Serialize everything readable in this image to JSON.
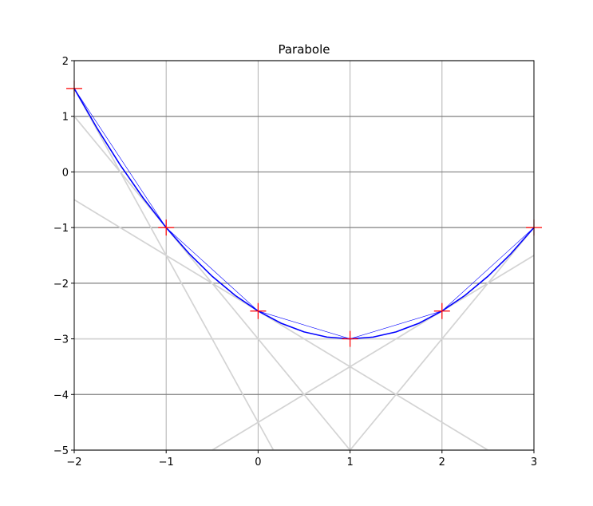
{
  "chart_data": {
    "type": "line",
    "title": "Parabole",
    "xlim": [
      -2,
      3
    ],
    "xticks": [
      {
        "value": -2,
        "label": "−2"
      },
      {
        "value": -1,
        "label": "−1"
      },
      0,
      1,
      2,
      3
    ],
    "ylim": [
      -5,
      2
    ],
    "yticks": [
      {
        "value": -5,
        "label": "−5"
      },
      {
        "value": -4,
        "label": "−4"
      },
      {
        "value": -3,
        "label": "−3"
      },
      {
        "value": -2,
        "label": "−2"
      },
      {
        "value": -1,
        "label": "−1"
      },
      0,
      1,
      2
    ],
    "grid": true,
    "xgrid_color": "#b0b0b0",
    "ygrid_color": "#808080",
    "tangents": {
      "color": "#d3d3d3",
      "lines": [
        {
          "x": [
            -2,
            0.1667
          ],
          "y": [
            1.5,
            -5
          ]
        },
        {
          "x": [
            -2,
            1
          ],
          "y": [
            1,
            -5
          ]
        },
        {
          "x": [
            -2,
            2.5
          ],
          "y": [
            -0.5,
            -5
          ]
        },
        {
          "x": [
            -2,
            3
          ],
          "y": [
            -3,
            -3
          ]
        },
        {
          "x": [
            -0.5,
            3
          ],
          "y": [
            -5,
            -1.5
          ]
        },
        {
          "x": [
            1,
            3
          ],
          "y": [
            -5,
            -1
          ]
        }
      ]
    },
    "curve": {
      "color": "#0000ff",
      "x": [
        -2,
        -1.75,
        -1.5,
        -1.25,
        -1,
        -0.75,
        -0.5,
        -0.25,
        0,
        0.25,
        0.5,
        0.75,
        1,
        1.25,
        1.5,
        1.75,
        2,
        2.25,
        2.5,
        2.75,
        3
      ],
      "y": [
        1.5,
        0.78125,
        0.125,
        -0.46875,
        -1,
        -1.46875,
        -1.875,
        -2.21875,
        -2.5,
        -2.71875,
        -2.875,
        -2.96875,
        -3,
        -2.96875,
        -2.875,
        -2.71875,
        -2.5,
        -2.21875,
        -1.875,
        -1.46875,
        -1
      ]
    },
    "points": {
      "color": "#ff0000",
      "line_color": "#0000ff",
      "x": [
        -2,
        -1,
        0,
        1,
        2,
        3
      ],
      "y": [
        1.5,
        -1,
        -2.5,
        -3,
        -2.5,
        -1
      ]
    }
  }
}
